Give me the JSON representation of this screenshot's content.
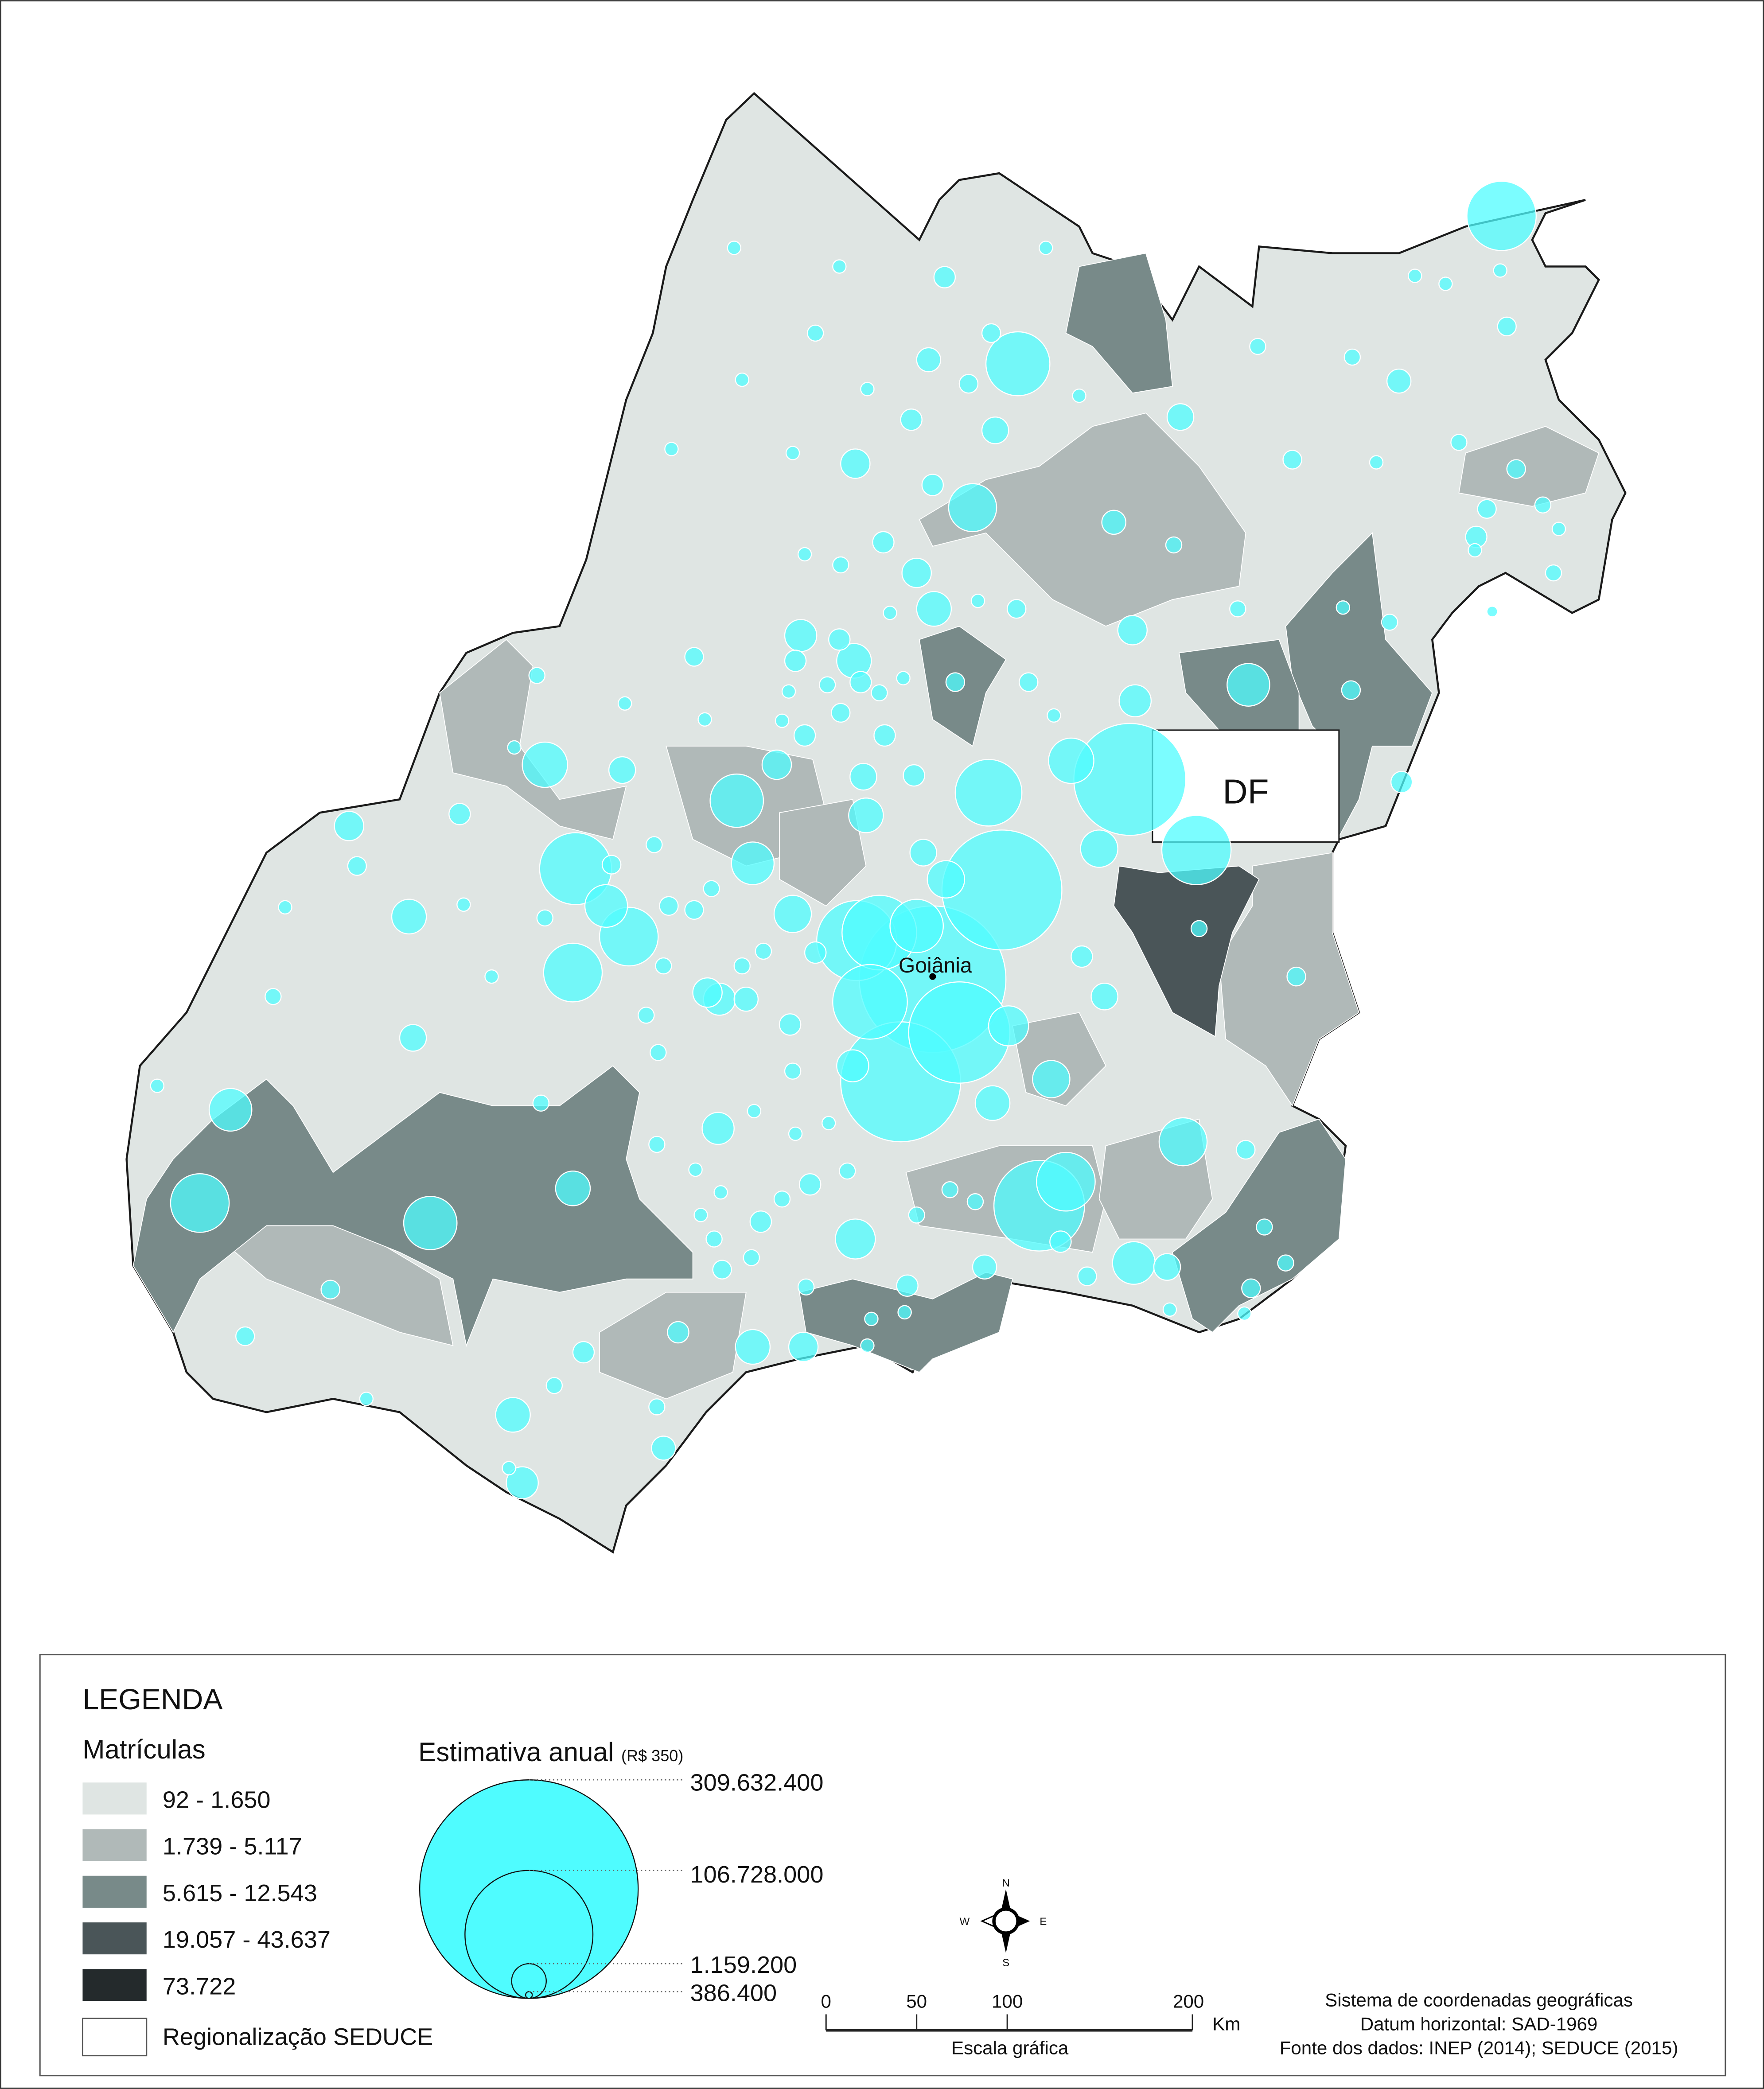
{
  "map": {
    "labels": {
      "df": "DF",
      "capital": "Goiânia"
    },
    "colors": {
      "circle": "#4ffcff",
      "circle_stroke": "#ffffff",
      "boundary": "#1a1a1a"
    }
  },
  "legend": {
    "title": "LEGENDA",
    "matriculas": {
      "title": "Matrículas",
      "classes": [
        {
          "label": "92 - 1.650",
          "color": "#dfe5e3"
        },
        {
          "label": "1.739 - 5.117",
          "color": "#b0b9b8"
        },
        {
          "label": "5.615 - 12.543",
          "color": "#788a89"
        },
        {
          "label": "19.057 - 43.637",
          "color": "#4a5558"
        },
        {
          "label": "73.722",
          "color": "#242a2c"
        }
      ],
      "boundary_label": "Regionalização SEDUCE"
    },
    "estimativa": {
      "title": "Estimativa anual",
      "unit": "(R$ 350)",
      "values": [
        "309.632.400",
        "106.728.000",
        "1.159.200",
        "386.400"
      ],
      "color": "#4ffcff"
    }
  },
  "compass": {
    "n": "N",
    "s": "S",
    "e": "E",
    "w": "W"
  },
  "scale": {
    "ticks": [
      "0",
      "50",
      "100",
      "200"
    ],
    "unit": "Km",
    "caption": "Escala gráfica"
  },
  "credits": [
    "Sistema de coordenadas geográficas",
    "Datum horizontal: SAD-1969",
    "Fonte dos dados: INEP (2014); SEDUCE (2015)"
  ]
}
